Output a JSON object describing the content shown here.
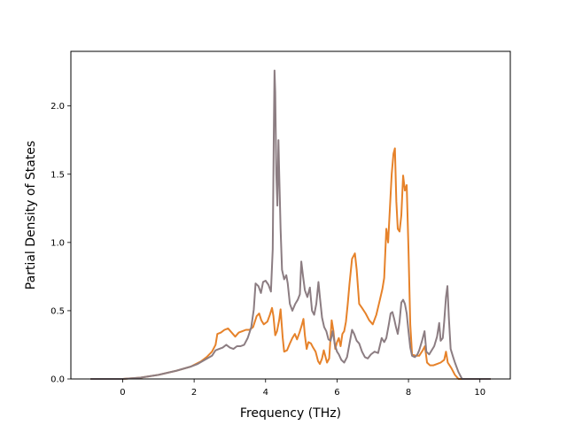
{
  "chart_data": {
    "type": "line",
    "title": "",
    "xlabel": "Frequency (THz)",
    "ylabel": "Partial Density of States",
    "xlim": [
      -1.45,
      10.85
    ],
    "ylim": [
      0.0,
      2.4
    ],
    "x_ticks": [
      0,
      2,
      4,
      6,
      8,
      10
    ],
    "x_tick_labels": [
      "0",
      "2",
      "4",
      "6",
      "8",
      "10"
    ],
    "y_ticks": [
      0.0,
      0.5,
      1.0,
      1.5,
      2.0
    ],
    "y_tick_labels": [
      "0.0",
      "0.5",
      "1.0",
      "1.5",
      "2.0"
    ],
    "grid": false,
    "legend": "none",
    "series": [
      {
        "color": "#e6822a",
        "points": [
          [
            -0.9,
            0.0
          ],
          [
            0.0,
            0.0
          ],
          [
            0.5,
            0.01
          ],
          [
            1.0,
            0.03
          ],
          [
            1.5,
            0.06
          ],
          [
            1.9,
            0.09
          ],
          [
            2.2,
            0.13
          ],
          [
            2.35,
            0.16
          ],
          [
            2.5,
            0.2
          ],
          [
            2.6,
            0.25
          ],
          [
            2.65,
            0.33
          ],
          [
            2.75,
            0.34
          ],
          [
            2.85,
            0.36
          ],
          [
            2.95,
            0.37
          ],
          [
            3.05,
            0.34
          ],
          [
            3.15,
            0.31
          ],
          [
            3.25,
            0.34
          ],
          [
            3.35,
            0.35
          ],
          [
            3.45,
            0.36
          ],
          [
            3.55,
            0.36
          ],
          [
            3.65,
            0.38
          ],
          [
            3.75,
            0.46
          ],
          [
            3.82,
            0.48
          ],
          [
            3.88,
            0.43
          ],
          [
            3.95,
            0.4
          ],
          [
            4.05,
            0.42
          ],
          [
            4.12,
            0.47
          ],
          [
            4.18,
            0.52
          ],
          [
            4.22,
            0.46
          ],
          [
            4.27,
            0.32
          ],
          [
            4.32,
            0.35
          ],
          [
            4.38,
            0.43
          ],
          [
            4.42,
            0.51
          ],
          [
            4.48,
            0.3
          ],
          [
            4.52,
            0.2
          ],
          [
            4.6,
            0.21
          ],
          [
            4.68,
            0.26
          ],
          [
            4.75,
            0.3
          ],
          [
            4.82,
            0.33
          ],
          [
            4.88,
            0.29
          ],
          [
            4.95,
            0.34
          ],
          [
            5.02,
            0.4
          ],
          [
            5.06,
            0.44
          ],
          [
            5.1,
            0.32
          ],
          [
            5.15,
            0.22
          ],
          [
            5.2,
            0.27
          ],
          [
            5.27,
            0.26
          ],
          [
            5.33,
            0.23
          ],
          [
            5.4,
            0.2
          ],
          [
            5.47,
            0.13
          ],
          [
            5.52,
            0.11
          ],
          [
            5.58,
            0.15
          ],
          [
            5.63,
            0.21
          ],
          [
            5.68,
            0.16
          ],
          [
            5.72,
            0.12
          ],
          [
            5.78,
            0.15
          ],
          [
            5.85,
            0.43
          ],
          [
            5.9,
            0.35
          ],
          [
            5.95,
            0.22
          ],
          [
            6.0,
            0.27
          ],
          [
            6.05,
            0.3
          ],
          [
            6.1,
            0.24
          ],
          [
            6.15,
            0.33
          ],
          [
            6.2,
            0.35
          ],
          [
            6.25,
            0.42
          ],
          [
            6.3,
            0.55
          ],
          [
            6.35,
            0.7
          ],
          [
            6.42,
            0.88
          ],
          [
            6.5,
            0.92
          ],
          [
            6.55,
            0.8
          ],
          [
            6.62,
            0.55
          ],
          [
            6.7,
            0.52
          ],
          [
            6.8,
            0.48
          ],
          [
            6.9,
            0.43
          ],
          [
            7.0,
            0.4
          ],
          [
            7.1,
            0.47
          ],
          [
            7.2,
            0.58
          ],
          [
            7.27,
            0.66
          ],
          [
            7.32,
            0.74
          ],
          [
            7.38,
            1.1
          ],
          [
            7.43,
            1.0
          ],
          [
            7.48,
            1.25
          ],
          [
            7.53,
            1.5
          ],
          [
            7.58,
            1.65
          ],
          [
            7.62,
            1.69
          ],
          [
            7.66,
            1.3
          ],
          [
            7.7,
            1.1
          ],
          [
            7.75,
            1.08
          ],
          [
            7.8,
            1.2
          ],
          [
            7.85,
            1.49
          ],
          [
            7.9,
            1.38
          ],
          [
            7.95,
            1.42
          ],
          [
            8.0,
            0.95
          ],
          [
            8.05,
            0.4
          ],
          [
            8.1,
            0.18
          ],
          [
            8.2,
            0.17
          ],
          [
            8.3,
            0.17
          ],
          [
            8.4,
            0.21
          ],
          [
            8.46,
            0.24
          ],
          [
            8.52,
            0.12
          ],
          [
            8.6,
            0.1
          ],
          [
            8.7,
            0.1
          ],
          [
            8.8,
            0.11
          ],
          [
            8.9,
            0.12
          ],
          [
            9.0,
            0.14
          ],
          [
            9.05,
            0.2
          ],
          [
            9.1,
            0.12
          ],
          [
            9.2,
            0.08
          ],
          [
            9.3,
            0.03
          ],
          [
            9.4,
            0.0
          ],
          [
            10.3,
            0.0
          ]
        ]
      },
      {
        "color": "#8c7d82",
        "points": [
          [
            -0.9,
            0.0
          ],
          [
            0.0,
            0.0
          ],
          [
            0.5,
            0.01
          ],
          [
            1.0,
            0.03
          ],
          [
            1.5,
            0.06
          ],
          [
            1.9,
            0.09
          ],
          [
            2.1,
            0.11
          ],
          [
            2.3,
            0.14
          ],
          [
            2.5,
            0.17
          ],
          [
            2.6,
            0.21
          ],
          [
            2.7,
            0.22
          ],
          [
            2.8,
            0.23
          ],
          [
            2.9,
            0.25
          ],
          [
            3.0,
            0.23
          ],
          [
            3.1,
            0.22
          ],
          [
            3.2,
            0.24
          ],
          [
            3.3,
            0.24
          ],
          [
            3.4,
            0.25
          ],
          [
            3.5,
            0.3
          ],
          [
            3.6,
            0.38
          ],
          [
            3.67,
            0.51
          ],
          [
            3.72,
            0.7
          ],
          [
            3.8,
            0.68
          ],
          [
            3.87,
            0.63
          ],
          [
            3.93,
            0.71
          ],
          [
            4.0,
            0.72
          ],
          [
            4.08,
            0.69
          ],
          [
            4.15,
            0.64
          ],
          [
            4.2,
            0.95
          ],
          [
            4.23,
            1.8
          ],
          [
            4.25,
            2.26
          ],
          [
            4.27,
            2.1
          ],
          [
            4.3,
            1.5
          ],
          [
            4.33,
            1.27
          ],
          [
            4.36,
            1.75
          ],
          [
            4.38,
            1.52
          ],
          [
            4.42,
            1.1
          ],
          [
            4.46,
            0.8
          ],
          [
            4.52,
            0.73
          ],
          [
            4.58,
            0.76
          ],
          [
            4.62,
            0.7
          ],
          [
            4.68,
            0.55
          ],
          [
            4.75,
            0.5
          ],
          [
            4.83,
            0.55
          ],
          [
            4.9,
            0.58
          ],
          [
            4.96,
            0.62
          ],
          [
            5.0,
            0.86
          ],
          [
            5.05,
            0.75
          ],
          [
            5.1,
            0.65
          ],
          [
            5.17,
            0.6
          ],
          [
            5.24,
            0.67
          ],
          [
            5.3,
            0.5
          ],
          [
            5.36,
            0.47
          ],
          [
            5.42,
            0.55
          ],
          [
            5.48,
            0.71
          ],
          [
            5.52,
            0.6
          ],
          [
            5.58,
            0.45
          ],
          [
            5.64,
            0.38
          ],
          [
            5.7,
            0.35
          ],
          [
            5.76,
            0.29
          ],
          [
            5.82,
            0.28
          ],
          [
            5.88,
            0.35
          ],
          [
            5.94,
            0.25
          ],
          [
            6.0,
            0.2
          ],
          [
            6.05,
            0.18
          ],
          [
            6.12,
            0.14
          ],
          [
            6.2,
            0.12
          ],
          [
            6.28,
            0.16
          ],
          [
            6.35,
            0.26
          ],
          [
            6.42,
            0.36
          ],
          [
            6.48,
            0.33
          ],
          [
            6.55,
            0.28
          ],
          [
            6.62,
            0.26
          ],
          [
            6.7,
            0.2
          ],
          [
            6.78,
            0.16
          ],
          [
            6.86,
            0.15
          ],
          [
            6.95,
            0.18
          ],
          [
            7.05,
            0.2
          ],
          [
            7.15,
            0.19
          ],
          [
            7.25,
            0.3
          ],
          [
            7.32,
            0.27
          ],
          [
            7.38,
            0.3
          ],
          [
            7.45,
            0.4
          ],
          [
            7.5,
            0.48
          ],
          [
            7.55,
            0.49
          ],
          [
            7.6,
            0.44
          ],
          [
            7.65,
            0.38
          ],
          [
            7.7,
            0.33
          ],
          [
            7.75,
            0.42
          ],
          [
            7.8,
            0.56
          ],
          [
            7.85,
            0.58
          ],
          [
            7.9,
            0.55
          ],
          [
            7.95,
            0.48
          ],
          [
            8.0,
            0.35
          ],
          [
            8.05,
            0.23
          ],
          [
            8.1,
            0.17
          ],
          [
            8.18,
            0.16
          ],
          [
            8.25,
            0.18
          ],
          [
            8.3,
            0.21
          ],
          [
            8.38,
            0.28
          ],
          [
            8.45,
            0.35
          ],
          [
            8.5,
            0.2
          ],
          [
            8.58,
            0.18
          ],
          [
            8.65,
            0.21
          ],
          [
            8.72,
            0.24
          ],
          [
            8.8,
            0.31
          ],
          [
            8.86,
            0.41
          ],
          [
            8.9,
            0.28
          ],
          [
            8.96,
            0.3
          ],
          [
            9.0,
            0.42
          ],
          [
            9.05,
            0.6
          ],
          [
            9.09,
            0.68
          ],
          [
            9.13,
            0.45
          ],
          [
            9.18,
            0.22
          ],
          [
            9.25,
            0.16
          ],
          [
            9.3,
            0.12
          ],
          [
            9.4,
            0.05
          ],
          [
            9.5,
            0.0
          ],
          [
            10.3,
            0.0
          ]
        ]
      }
    ]
  }
}
